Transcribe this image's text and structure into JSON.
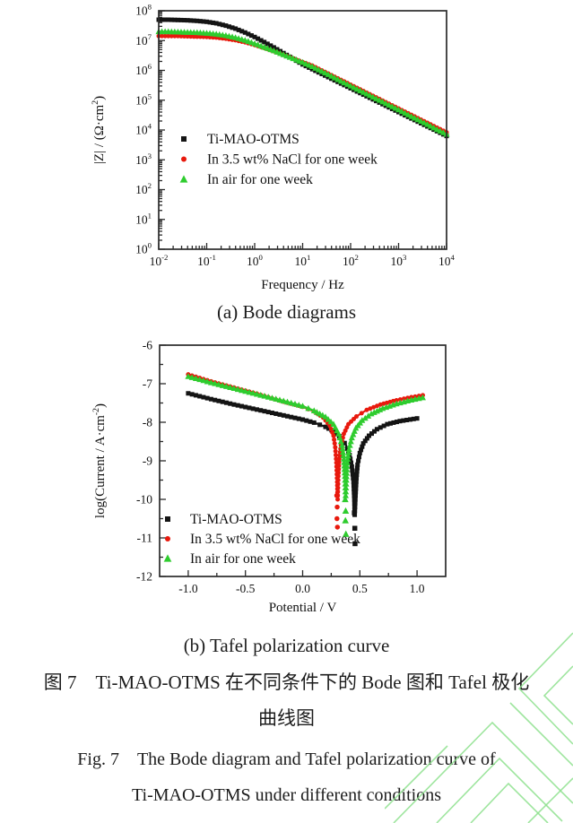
{
  "figure": {
    "caption_zh_line1": "图 7　Ti-MAO-OTMS 在不同条件下的 Bode 图和 Tafel 极化",
    "caption_zh_line2": "曲线图",
    "caption_en_line1": "Fig. 7　The Bode diagram and Tafel polarization curve of",
    "caption_en_line2": "Ti-MAO-OTMS under different conditions"
  },
  "colors": {
    "series_black": "#141414",
    "series_red": "#e8190d",
    "series_green": "#2ecc2e",
    "axis": "#2b2b2b",
    "tick_text": "#111111",
    "watermark": "#8de18d"
  },
  "chart_data": [
    {
      "id": "bode",
      "type": "line",
      "caption": "(a) Bode diagrams",
      "x_scale": "log",
      "y_scale": "log",
      "x_range": [
        -2,
        4
      ],
      "y_range": [
        0,
        8
      ],
      "x_unit": "log10(frequency, Hz)",
      "y_unit": "log10(|Z|, Ω·cm²)",
      "xlabel": "Frequency / Hz",
      "ylabel_parts": [
        {
          "t": "|Z| / (Ω·cm"
        },
        {
          "t": "2",
          "sup": true
        },
        {
          "t": ")"
        }
      ],
      "grid": false,
      "legend_position": "inside middle-left",
      "series": [
        {
          "name": "Ti-MAO-OTMS",
          "color": "#141414",
          "marker": "square",
          "x": [
            -2,
            -1.8,
            -1.6,
            -1.4,
            -1.2,
            -1,
            -0.8,
            -0.6,
            -0.4,
            -0.2,
            0,
            0.2,
            0.4,
            0.6,
            0.8,
            1,
            1.2,
            1.4,
            1.6,
            1.8,
            2,
            2.2,
            2.4,
            2.6,
            2.8,
            3,
            3.2,
            3.4,
            3.6,
            3.8,
            4
          ],
          "y": [
            7.7,
            7.7,
            7.69,
            7.68,
            7.66,
            7.63,
            7.58,
            7.5,
            7.4,
            7.27,
            7.12,
            6.95,
            6.77,
            6.58,
            6.39,
            6.2,
            6.04,
            5.88,
            5.72,
            5.56,
            5.4,
            5.24,
            5.08,
            4.92,
            4.76,
            4.6,
            4.44,
            4.28,
            4.12,
            3.96,
            3.8
          ]
        },
        {
          "name": "In 3.5 wt% NaCl for one week",
          "color": "#e8190d",
          "marker": "circle",
          "x": [
            -2,
            -1.8,
            -1.6,
            -1.4,
            -1.2,
            -1,
            -0.8,
            -0.6,
            -0.4,
            -0.2,
            0,
            0.2,
            0.4,
            0.6,
            0.8,
            1,
            1.2,
            1.4,
            1.6,
            1.8,
            2,
            2.2,
            2.4,
            2.6,
            2.8,
            3,
            3.2,
            3.4,
            3.6,
            3.8,
            4
          ],
          "y": [
            7.15,
            7.15,
            7.15,
            7.14,
            7.13,
            7.12,
            7.1,
            7.06,
            7.01,
            6.94,
            6.85,
            6.75,
            6.64,
            6.52,
            6.4,
            6.28,
            6.16,
            6.0,
            5.84,
            5.68,
            5.52,
            5.36,
            5.2,
            5.04,
            4.88,
            4.72,
            4.56,
            4.4,
            4.24,
            4.08,
            3.92
          ]
        },
        {
          "name": "In air for one week",
          "color": "#2ecc2e",
          "marker": "triangle",
          "x": [
            -2,
            -1.8,
            -1.6,
            -1.4,
            -1.2,
            -1,
            -0.8,
            -0.6,
            -0.4,
            -0.2,
            0,
            0.2,
            0.4,
            0.6,
            0.8,
            1,
            1.2,
            1.4,
            1.6,
            1.8,
            2,
            2.2,
            2.4,
            2.6,
            2.8,
            3,
            3.2,
            3.4,
            3.6,
            3.8,
            4
          ],
          "y": [
            7.3,
            7.3,
            7.29,
            7.28,
            7.27,
            7.25,
            7.22,
            7.17,
            7.1,
            7.01,
            6.9,
            6.78,
            6.66,
            6.53,
            6.4,
            6.27,
            6.13,
            5.97,
            5.81,
            5.64,
            5.48,
            5.32,
            5.16,
            5.0,
            4.84,
            4.68,
            4.51,
            4.35,
            4.19,
            4.02,
            3.86
          ]
        }
      ]
    },
    {
      "id": "tafel",
      "type": "line",
      "caption": "(b) Tafel polarization curve",
      "x_scale": "linear",
      "y_scale": "linear",
      "x_range": [
        -1.25,
        1.25
      ],
      "y_range": [
        -12,
        -6
      ],
      "x_ticks": [
        -1.0,
        -0.5,
        0.0,
        0.5,
        1.0
      ],
      "x_tick_labels": [
        "-1.0",
        "-0.5",
        "0.0",
        "0.5",
        "1.0"
      ],
      "x_minor_step": 0.25,
      "y_ticks": [
        -12,
        -11,
        -10,
        -9,
        -8,
        -7,
        -6
      ],
      "y_tick_labels": [
        "-12",
        "-11",
        "-10",
        "-9",
        "-8",
        "-7",
        "-6"
      ],
      "y_minor_step": 0.5,
      "xlabel": "Potential / V",
      "ylabel_parts": [
        {
          "t": "log(Current / A·cm"
        },
        {
          "t": "-2",
          "sup": true
        },
        {
          "t": ")"
        }
      ],
      "grid": false,
      "legend_position": "inside bottom-left",
      "series": [
        {
          "name": "Ti-MAO-OTMS",
          "color": "#141414",
          "marker": "square",
          "ecorr_v": 0.45,
          "x": [
            -1.0,
            -0.8,
            -0.6,
            -0.4,
            -0.2,
            0.0,
            0.1,
            0.2,
            0.28,
            0.34,
            0.38,
            0.41,
            0.43,
            0.445,
            0.452,
            0.455,
            0.462,
            0.47,
            0.48,
            0.5,
            0.53,
            0.58,
            0.65,
            0.74,
            0.85,
            1.0
          ],
          "y": [
            -7.25,
            -7.4,
            -7.54,
            -7.67,
            -7.8,
            -7.93,
            -8.01,
            -8.12,
            -8.25,
            -8.42,
            -8.6,
            -8.85,
            -9.15,
            -9.55,
            -10.0,
            -10.4,
            -9.9,
            -9.45,
            -9.1,
            -8.8,
            -8.55,
            -8.35,
            -8.18,
            -8.05,
            -7.97,
            -7.9
          ],
          "scatter_extra": [
            [
              0.452,
              -10.35
            ],
            [
              0.456,
              -10.75
            ],
            [
              0.458,
              -11.15
            ]
          ]
        },
        {
          "name": "In 3.5 wt% NaCl for one week",
          "color": "#e8190d",
          "marker": "circle",
          "ecorr_v": 0.3,
          "x": [
            -1.0,
            -0.8,
            -0.6,
            -0.4,
            -0.2,
            0.0,
            0.1,
            0.18,
            0.24,
            0.27,
            0.285,
            0.295,
            0.302,
            0.306,
            0.312,
            0.32,
            0.335,
            0.36,
            0.4,
            0.47,
            0.56,
            0.68,
            0.82,
            0.95,
            1.05
          ],
          "y": [
            -6.76,
            -6.94,
            -7.1,
            -7.26,
            -7.44,
            -7.6,
            -7.72,
            -7.88,
            -8.1,
            -8.35,
            -8.65,
            -9.05,
            -9.55,
            -10.0,
            -9.4,
            -8.95,
            -8.6,
            -8.3,
            -8.05,
            -7.85,
            -7.68,
            -7.54,
            -7.43,
            -7.35,
            -7.3
          ],
          "scatter_extra": [
            [
              0.298,
              -9.9
            ],
            [
              0.302,
              -10.2
            ],
            [
              0.3,
              -10.5
            ],
            [
              0.304,
              -10.72
            ]
          ]
        },
        {
          "name": "In air for one week",
          "color": "#2ecc2e",
          "marker": "triangle",
          "ecorr_v": 0.37,
          "x": [
            -1.0,
            -0.8,
            -0.6,
            -0.4,
            -0.2,
            0.0,
            0.1,
            0.2,
            0.27,
            0.315,
            0.345,
            0.36,
            0.37,
            0.376,
            0.382,
            0.39,
            0.405,
            0.43,
            0.465,
            0.52,
            0.6,
            0.7,
            0.82,
            0.95,
            1.05
          ],
          "y": [
            -6.81,
            -6.97,
            -7.12,
            -7.27,
            -7.42,
            -7.58,
            -7.7,
            -7.86,
            -8.05,
            -8.3,
            -8.6,
            -8.95,
            -9.4,
            -9.9,
            -9.5,
            -9.05,
            -8.7,
            -8.4,
            -8.15,
            -7.95,
            -7.78,
            -7.64,
            -7.52,
            -7.42,
            -7.36
          ],
          "scatter_extra": [
            [
              0.372,
              -10.0
            ],
            [
              0.376,
              -10.3
            ],
            [
              0.374,
              -10.55
            ],
            [
              0.378,
              -10.9
            ]
          ]
        }
      ]
    }
  ]
}
